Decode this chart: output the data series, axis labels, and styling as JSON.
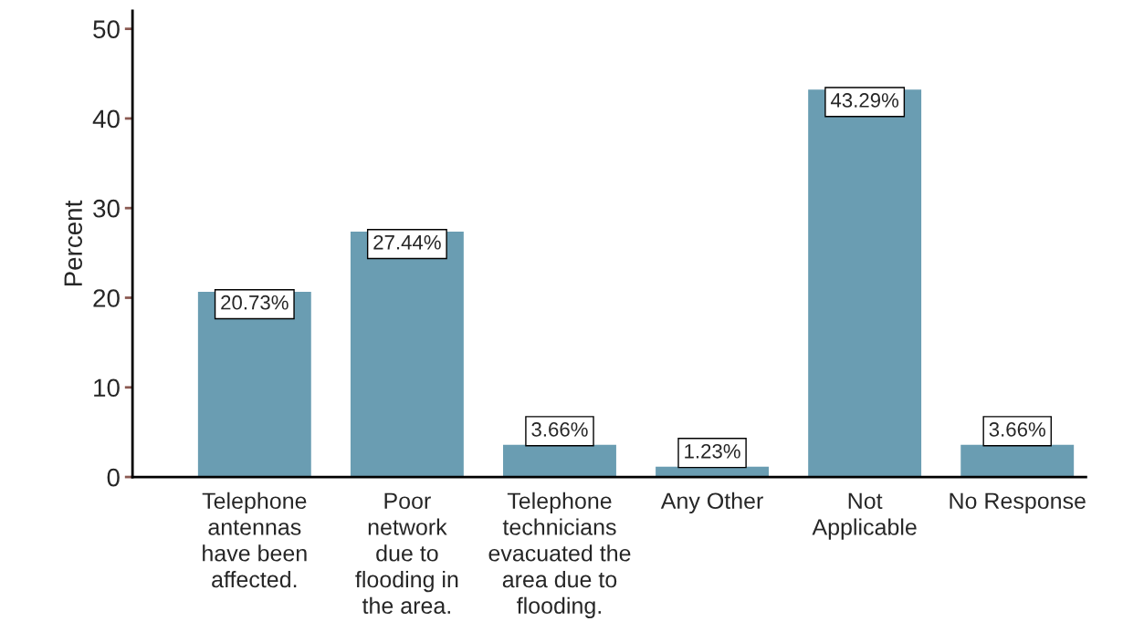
{
  "chart_data": {
    "type": "bar",
    "ylabel": "Percent",
    "categories": [
      "Telephone\nantennas\nhave been\naffected.",
      "Poor\nnetwork\ndue to\nflooding in\nthe area.",
      "Telephone\ntechnicians\nevacuated the\narea due to\nflooding.",
      "Any Other",
      "Not\nApplicable",
      "No Response"
    ],
    "values": [
      20.73,
      27.44,
      3.66,
      1.23,
      43.29,
      3.66
    ],
    "value_labels": [
      "20.73%",
      "27.44%",
      "3.66%",
      "1.23%",
      "43.29%",
      "3.66%"
    ],
    "color": "#6a9db2",
    "ylim": [
      0,
      52
    ],
    "yticks": [
      0,
      10,
      20,
      30,
      40,
      50
    ],
    "grid": false,
    "legend": false
  }
}
